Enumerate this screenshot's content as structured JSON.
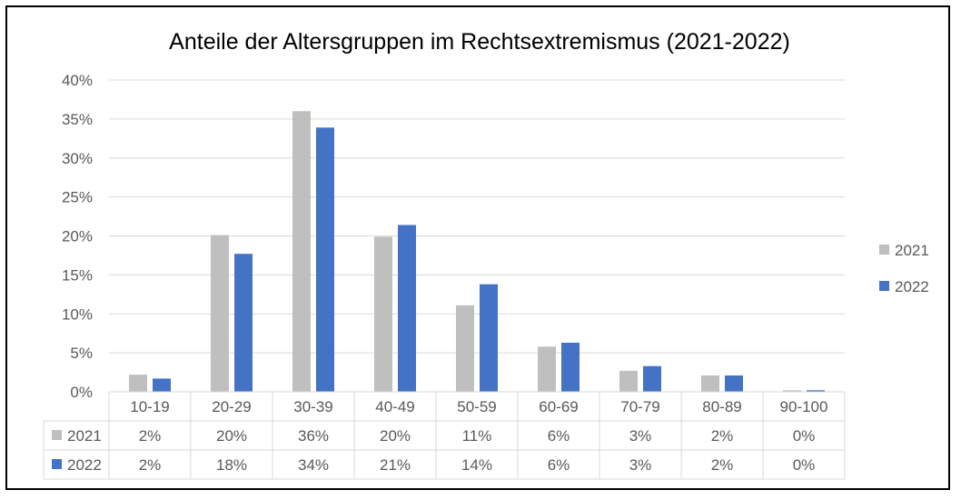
{
  "chart_data": {
    "type": "bar",
    "title": "Anteile der Altersgruppen im Rechtsextremismus (2021-2022)",
    "categories": [
      "10-19",
      "20-29",
      "30-39",
      "40-49",
      "50-59",
      "60-69",
      "70-79",
      "80-89",
      "90-100"
    ],
    "series": [
      {
        "name": "2021",
        "color": "#bfbfbf",
        "values": [
          2.2,
          20.1,
          36.0,
          19.9,
          11.1,
          5.8,
          2.7,
          2.1,
          0.2
        ],
        "table_labels": [
          "2%",
          "20%",
          "36%",
          "20%",
          "11%",
          "6%",
          "3%",
          "2%",
          "0%"
        ]
      },
      {
        "name": "2022",
        "color": "#4472c4",
        "values": [
          1.7,
          17.7,
          33.9,
          21.4,
          13.8,
          6.3,
          3.3,
          2.1,
          0.2
        ],
        "table_labels": [
          "2%",
          "18%",
          "34%",
          "21%",
          "14%",
          "6%",
          "3%",
          "2%",
          "0%"
        ]
      }
    ],
    "ylim": [
      0,
      40
    ],
    "yticks": [
      "0%",
      "5%",
      "10%",
      "15%",
      "20%",
      "25%",
      "30%",
      "35%",
      "40%"
    ],
    "grid": true,
    "legend_position": "right",
    "data_table": true
  }
}
